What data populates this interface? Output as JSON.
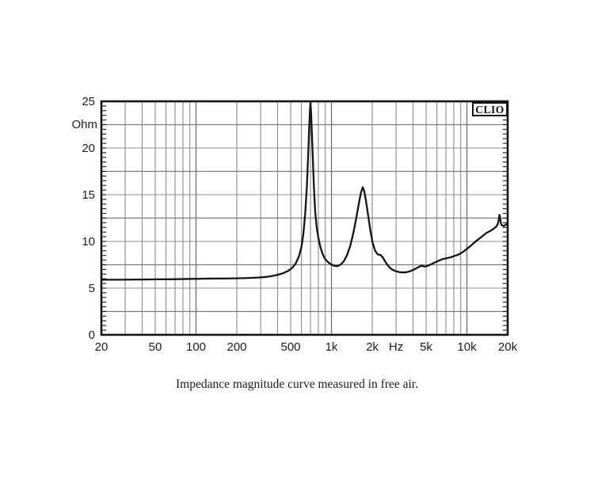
{
  "chart": {
    "brand": "CLIO",
    "y_unit_label": "Ohm",
    "x_unit_label": "Hz",
    "caption": "Impedance magnitude curve measured in free air."
  },
  "colors": {
    "background": "#ffffff",
    "grid": "#8a8a8a",
    "grid_emphasis": "#6e6e6e",
    "grid_h": "#8f8f8f",
    "grid_h_emphasis": "#7b7b7b",
    "axis": "#141414",
    "curve": "#141414",
    "text": "#1c1c1c"
  },
  "chart_data": {
    "type": "line",
    "title": "",
    "xlabel": "Hz",
    "ylabel": "Ohm",
    "x_scale": "log",
    "xlim": [
      20,
      20000
    ],
    "ylim": [
      0,
      25
    ],
    "grid": true,
    "legend": "none",
    "x_gridlines": [
      30,
      40,
      50,
      60,
      70,
      80,
      90,
      100,
      200,
      300,
      400,
      500,
      600,
      700,
      800,
      900,
      1000,
      2000,
      3000,
      4000,
      5000,
      6000,
      7000,
      8000,
      9000,
      10000
    ],
    "x_gridline_emphasis": [
      100,
      1000,
      10000
    ],
    "y_gridlines": [
      2.5,
      5,
      7.5,
      10,
      12.5,
      15,
      17.5,
      20,
      22.5
    ],
    "y_gridline_emphasis": [
      2.5,
      7.5,
      12.5,
      17.5,
      22.5
    ],
    "y_minor_tick_step": 0.5,
    "x_tick_labels": [
      {
        "f": 20,
        "label": "20"
      },
      {
        "f": 50,
        "label": "50"
      },
      {
        "f": 100,
        "label": "100"
      },
      {
        "f": 200,
        "label": "200"
      },
      {
        "f": 500,
        "label": "500"
      },
      {
        "f": 1000,
        "label": "1k"
      },
      {
        "f": 2000,
        "label": "2k"
      },
      {
        "f": 3000,
        "label": "Hz"
      },
      {
        "f": 5000,
        "label": "5k"
      },
      {
        "f": 10000,
        "label": "10k"
      },
      {
        "f": 20000,
        "label": "20k"
      }
    ],
    "y_tick_labels": [
      {
        "v": 0,
        "label": "0"
      },
      {
        "v": 5,
        "label": "5"
      },
      {
        "v": 10,
        "label": "10"
      },
      {
        "v": 15,
        "label": "15"
      },
      {
        "v": 20,
        "label": "20"
      },
      {
        "v": 25,
        "label": "25"
      }
    ],
    "series": [
      {
        "name": "impedance-magnitude",
        "points": [
          [
            20,
            5.9
          ],
          [
            26,
            5.9
          ],
          [
            33,
            5.91
          ],
          [
            42,
            5.92
          ],
          [
            53,
            5.94
          ],
          [
            67,
            5.95
          ],
          [
            85,
            5.98
          ],
          [
            105,
            6.0
          ],
          [
            130,
            6.02
          ],
          [
            160,
            6.03
          ],
          [
            200,
            6.05
          ],
          [
            240,
            6.08
          ],
          [
            280,
            6.12
          ],
          [
            320,
            6.18
          ],
          [
            360,
            6.28
          ],
          [
            400,
            6.42
          ],
          [
            440,
            6.6
          ],
          [
            480,
            6.85
          ],
          [
            515,
            7.2
          ],
          [
            545,
            7.65
          ],
          [
            575,
            8.4
          ],
          [
            600,
            9.4
          ],
          [
            620,
            10.8
          ],
          [
            640,
            13.0
          ],
          [
            658,
            15.8
          ],
          [
            672,
            19.0
          ],
          [
            685,
            22.3
          ],
          [
            695,
            24.2
          ],
          [
            700,
            24.85
          ],
          [
            706,
            24.0
          ],
          [
            715,
            22.0
          ],
          [
            728,
            19.0
          ],
          [
            742,
            15.8
          ],
          [
            758,
            13.2
          ],
          [
            778,
            11.5
          ],
          [
            800,
            10.4
          ],
          [
            828,
            9.4
          ],
          [
            858,
            8.7
          ],
          [
            895,
            8.15
          ],
          [
            940,
            7.8
          ],
          [
            990,
            7.55
          ],
          [
            1045,
            7.4
          ],
          [
            1105,
            7.35
          ],
          [
            1165,
            7.5
          ],
          [
            1230,
            7.85
          ],
          [
            1300,
            8.5
          ],
          [
            1375,
            9.5
          ],
          [
            1450,
            10.9
          ],
          [
            1520,
            12.4
          ],
          [
            1590,
            14.0
          ],
          [
            1650,
            15.2
          ],
          [
            1700,
            15.8
          ],
          [
            1745,
            15.4
          ],
          [
            1800,
            14.3
          ],
          [
            1865,
            12.8
          ],
          [
            1935,
            11.2
          ],
          [
            2010,
            9.9
          ],
          [
            2100,
            9.0
          ],
          [
            2200,
            8.6
          ],
          [
            2300,
            8.55
          ],
          [
            2390,
            8.3
          ],
          [
            2470,
            7.95
          ],
          [
            2570,
            7.55
          ],
          [
            2690,
            7.2
          ],
          [
            2830,
            6.95
          ],
          [
            3000,
            6.8
          ],
          [
            3200,
            6.7
          ],
          [
            3450,
            6.68
          ],
          [
            3700,
            6.75
          ],
          [
            3950,
            6.9
          ],
          [
            4200,
            7.1
          ],
          [
            4450,
            7.3
          ],
          [
            4650,
            7.4
          ],
          [
            4850,
            7.3
          ],
          [
            5050,
            7.35
          ],
          [
            5350,
            7.5
          ],
          [
            5700,
            7.7
          ],
          [
            6100,
            7.9
          ],
          [
            6600,
            8.1
          ],
          [
            7100,
            8.2
          ],
          [
            7600,
            8.3
          ],
          [
            8100,
            8.45
          ],
          [
            8700,
            8.6
          ],
          [
            9300,
            8.85
          ],
          [
            10000,
            9.2
          ],
          [
            10700,
            9.55
          ],
          [
            11400,
            9.9
          ],
          [
            12200,
            10.25
          ],
          [
            13000,
            10.55
          ],
          [
            13900,
            10.9
          ],
          [
            14800,
            11.1
          ],
          [
            15700,
            11.35
          ],
          [
            16400,
            11.55
          ],
          [
            16900,
            11.85
          ],
          [
            17150,
            12.25
          ],
          [
            17400,
            12.85
          ],
          [
            17600,
            12.5
          ],
          [
            17850,
            11.9
          ],
          [
            18200,
            11.7
          ],
          [
            18800,
            11.68
          ],
          [
            19400,
            11.8
          ],
          [
            20000,
            11.95
          ]
        ]
      }
    ]
  }
}
